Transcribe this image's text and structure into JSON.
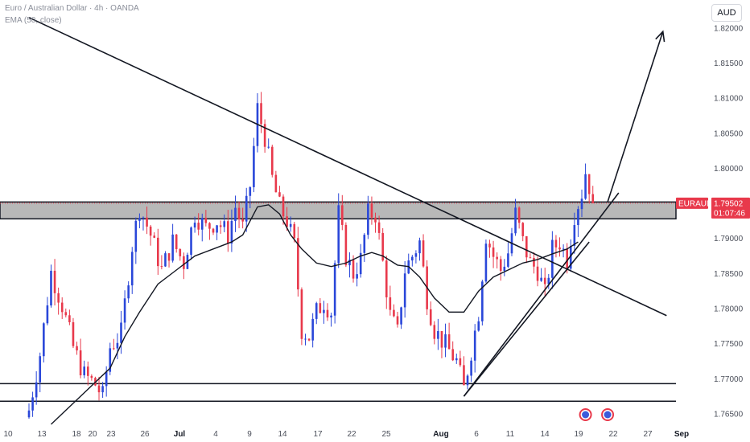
{
  "header": {
    "title": "Euro / Australian Dollar · 4h · OANDA",
    "indicator": "EMA (50, close)"
  },
  "currency_button": "AUD",
  "colors": {
    "up": "#2a47d9",
    "down": "#e8394b",
    "zone": "#b8b8b8",
    "price_label": "#e8394b"
  },
  "chart_data": {
    "type": "candlestick",
    "symbol": "EURAUD",
    "timeframe": "4h",
    "y_ticks": [
      1.765,
      1.77,
      1.775,
      1.78,
      1.785,
      1.79,
      1.795,
      1.8,
      1.805,
      1.81,
      1.815,
      1.82
    ],
    "ylim": [
      1.7635,
      1.824
    ],
    "x_ticks": [
      "10",
      "13",
      "18",
      "20",
      "23",
      "26",
      "Jul",
      "4",
      "9",
      "14",
      "17",
      "22",
      "25",
      "Aug",
      "6",
      "11",
      "14",
      "19",
      "22",
      "27",
      "Sep"
    ],
    "last_price": {
      "symbol": "EURAUD",
      "value": "1.79502",
      "countdown": "01:07:46"
    },
    "close_path": [
      [
        0,
        1.7655
      ],
      [
        3,
        1.7735
      ],
      [
        6,
        1.7852
      ],
      [
        9,
        1.7805
      ],
      [
        12,
        1.7745
      ],
      [
        15,
        1.7705
      ],
      [
        18,
        1.7692
      ],
      [
        20,
        1.7675
      ],
      [
        22,
        1.7745
      ],
      [
        25,
        1.7765
      ],
      [
        28,
        1.789
      ],
      [
        30,
        1.7945
      ],
      [
        33,
        1.7905
      ],
      [
        36,
        1.7855
      ],
      [
        39,
        1.7895
      ],
      [
        42,
        1.7865
      ],
      [
        45,
        1.7935
      ],
      [
        48,
        1.7915
      ],
      [
        51,
        1.7925
      ],
      [
        54,
        1.7905
      ],
      [
        56,
        1.7945
      ],
      [
        58,
        1.7915
      ],
      [
        60,
        1.7975
      ],
      [
        62,
        1.8085
      ],
      [
        64,
        1.8045
      ],
      [
        66,
        1.7985
      ],
      [
        68,
        1.7945
      ],
      [
        70,
        1.7925
      ],
      [
        72,
        1.789
      ],
      [
        74,
        1.777
      ],
      [
        76,
        1.776
      ],
      [
        78,
        1.7795
      ],
      [
        80,
        1.781
      ],
      [
        82,
        1.7795
      ],
      [
        84,
        1.7935
      ],
      [
        86,
        1.7875
      ],
      [
        88,
        1.785
      ],
      [
        90,
        1.787
      ],
      [
        92,
        1.7935
      ],
      [
        94,
        1.7935
      ],
      [
        96,
        1.7865
      ],
      [
        98,
        1.779
      ],
      [
        100,
        1.7765
      ],
      [
        102,
        1.7855
      ],
      [
        104,
        1.7875
      ],
      [
        106,
        1.7895
      ],
      [
        108,
        1.7815
      ],
      [
        110,
        1.777
      ],
      [
        112,
        1.7755
      ],
      [
        114,
        1.774
      ],
      [
        116,
        1.7725
      ],
      [
        118,
        1.7685
      ],
      [
        120,
        1.774
      ],
      [
        122,
        1.7795
      ],
      [
        124,
        1.7905
      ],
      [
        126,
        1.7875
      ],
      [
        128,
        1.7855
      ],
      [
        130,
        1.788
      ],
      [
        132,
        1.7935
      ],
      [
        134,
        1.7895
      ],
      [
        136,
        1.7865
      ],
      [
        138,
        1.7855
      ],
      [
        140,
        1.782
      ],
      [
        142,
        1.7885
      ],
      [
        144,
        1.7895
      ],
      [
        146,
        1.787
      ],
      [
        148,
        1.7935
      ],
      [
        150,
        1.7965
      ],
      [
        151,
        1.7995
      ],
      [
        152,
        1.7975
      ],
      [
        153,
        1.7952
      ]
    ],
    "ema_path": [
      [
        6,
        1.7635
      ],
      [
        15,
        1.768
      ],
      [
        22,
        1.7715
      ],
      [
        26,
        1.776
      ],
      [
        30,
        1.7795
      ],
      [
        35,
        1.7835
      ],
      [
        40,
        1.7855
      ],
      [
        45,
        1.7875
      ],
      [
        50,
        1.7885
      ],
      [
        55,
        1.7895
      ],
      [
        58,
        1.7905
      ],
      [
        60,
        1.7925
      ],
      [
        62,
        1.7945
      ],
      [
        65,
        1.7948
      ],
      [
        68,
        1.7935
      ],
      [
        71,
        1.7905
      ],
      [
        74,
        1.7885
      ],
      [
        78,
        1.7865
      ],
      [
        82,
        1.786
      ],
      [
        86,
        1.7865
      ],
      [
        90,
        1.7875
      ],
      [
        93,
        1.788
      ],
      [
        96,
        1.7875
      ],
      [
        100,
        1.7862
      ],
      [
        103,
        1.786
      ],
      [
        106,
        1.7845
      ],
      [
        110,
        1.7815
      ],
      [
        114,
        1.7795
      ],
      [
        118,
        1.7795
      ],
      [
        122,
        1.7825
      ],
      [
        126,
        1.7845
      ],
      [
        130,
        1.7855
      ],
      [
        134,
        1.7865
      ],
      [
        138,
        1.787
      ],
      [
        142,
        1.7878
      ],
      [
        146,
        1.7885
      ],
      [
        149,
        1.7895
      ]
    ],
    "zone": {
      "low": 1.7928,
      "high": 1.7952
    },
    "support_lines": [
      1.7693,
      1.7668
    ],
    "trendlines": [
      {
        "from": [
          0,
          1.8215
        ],
        "to": [
          173,
          1.779
        ]
      },
      {
        "from": [
          118,
          1.7675
        ],
        "to": [
          160,
          1.7965
        ]
      },
      {
        "from": [
          118,
          1.7675
        ],
        "to": [
          152,
          1.7895
        ]
      }
    ],
    "arrow": {
      "from": [
        157,
        1.7952
      ],
      "to": [
        172,
        1.8195
      ]
    },
    "markers": [
      151,
      157
    ],
    "grid": false,
    "legend": "none"
  }
}
